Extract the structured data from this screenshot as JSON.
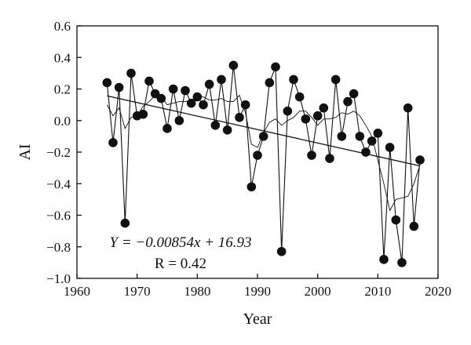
{
  "chart_data": {
    "type": "scatter",
    "xlabel": "Year",
    "ylabel": "AI",
    "xlim": [
      1960,
      2020
    ],
    "ylim": [
      -1.0,
      0.6
    ],
    "xticks": [
      1960,
      1970,
      1980,
      1990,
      2000,
      2010,
      2020
    ],
    "yticks": [
      0.6,
      0.4,
      0.2,
      0.0,
      -0.2,
      -0.4,
      -0.6,
      -0.8,
      -1.0
    ],
    "ytick_labels": [
      "0.6",
      "0.4",
      "0.2",
      "0.0",
      "−0.2",
      "−0.4",
      "−0.6",
      "−0.8",
      "−1.0"
    ],
    "grid": false,
    "series": [
      {
        "type": "scatter",
        "marker": "filled-circle",
        "x": [
          1965,
          1966,
          1967,
          1968,
          1969,
          1970,
          1971,
          1972,
          1973,
          1974,
          1975,
          1976,
          1977,
          1978,
          1979,
          1980,
          1981,
          1982,
          1983,
          1984,
          1985,
          1986,
          1987,
          1988,
          1989,
          1990,
          1991,
          1992,
          1993,
          1994,
          1995,
          1996,
          1997,
          1998,
          1999,
          2000,
          2001,
          2002,
          2003,
          2004,
          2005,
          2006,
          2007,
          2008,
          2009,
          2010,
          2011,
          2012,
          2013,
          2014,
          2015,
          2016,
          2017
        ],
        "y": [
          0.24,
          -0.14,
          0.21,
          -0.65,
          0.3,
          0.03,
          0.04,
          0.25,
          0.17,
          0.14,
          -0.05,
          0.2,
          0.0,
          0.19,
          0.11,
          0.15,
          0.1,
          0.23,
          -0.03,
          0.26,
          -0.06,
          0.35,
          0.02,
          0.1,
          -0.42,
          -0.22,
          -0.1,
          0.24,
          0.34,
          -0.83,
          0.06,
          0.26,
          0.15,
          0.01,
          -0.22,
          0.03,
          0.08,
          -0.24,
          0.26,
          -0.1,
          0.12,
          0.17,
          -0.1,
          -0.2,
          -0.13,
          -0.08,
          -0.88,
          -0.17,
          -0.63,
          -0.9,
          0.08,
          -0.67,
          -0.25
        ]
      },
      {
        "type": "line",
        "style": "thin",
        "x": [
          1965,
          1966,
          1967,
          1968,
          1969,
          1970,
          1971,
          1972,
          1973,
          1974,
          1975,
          1976,
          1977,
          1978,
          1979,
          1980,
          1981,
          1982,
          1983,
          1984,
          1985,
          1986,
          1987,
          1988,
          1989,
          1990,
          1991,
          1992,
          1993,
          1994,
          1995,
          1996,
          1997,
          1998,
          1999,
          2000,
          2001,
          2002,
          2003,
          2004,
          2005,
          2006,
          2007,
          2008,
          2009,
          2010,
          2011,
          2012,
          2013,
          2014,
          2015,
          2016,
          2017
        ],
        "y": [
          0.1,
          0.03,
          0.08,
          -0.05,
          0.02,
          0.03,
          0.09,
          0.12,
          0.16,
          0.15,
          0.1,
          0.11,
          0.12,
          0.12,
          0.13,
          0.15,
          0.15,
          0.13,
          0.13,
          0.14,
          0.12,
          0.12,
          0.16,
          0.05,
          -0.15,
          -0.17,
          -0.08,
          -0.01,
          0.01,
          -0.03,
          0.0,
          0.02,
          0.06,
          0.06,
          0.02,
          -0.03,
          0.01,
          0.01,
          0.02,
          0.05,
          0.04,
          0.06,
          0.03,
          -0.03,
          -0.1,
          -0.25,
          -0.4,
          -0.57,
          -0.5,
          -0.49,
          -0.48,
          -0.4,
          -0.28
        ]
      },
      {
        "type": "line",
        "style": "trend",
        "x": [
          1965,
          2017
        ],
        "y": [
          0.1565,
          -0.2876
        ]
      }
    ],
    "annotations": [
      {
        "text": "Y = −0.00854x + 16.93"
      },
      {
        "text": "R = 0.42"
      }
    ]
  }
}
